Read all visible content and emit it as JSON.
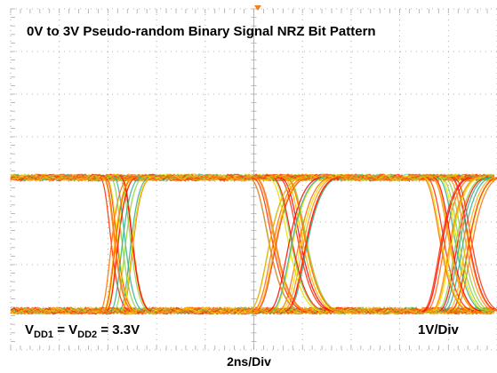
{
  "title": "0V to 3V Pseudo-random Binary Signal NRZ Bit Pattern",
  "supply_label": {
    "v1": "V",
    "sub1": "DD1",
    "eq": " = V",
    "sub2": "DD2",
    "rest": " = 3.3V"
  },
  "vertical_scale": "1V/Div",
  "horizontal_scale": "2ns/Div"
}
